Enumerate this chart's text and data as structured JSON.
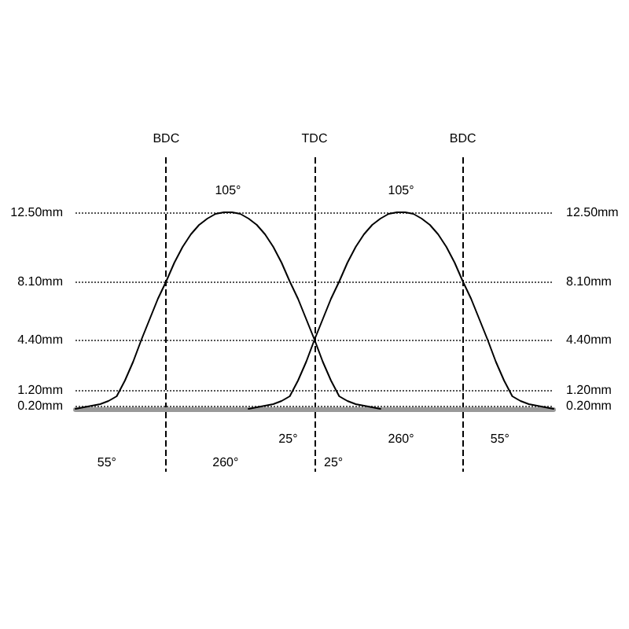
{
  "chart_data": {
    "type": "line",
    "categories": [
      null,
      null,
      null,
      null,
      null,
      null,
      null,
      null,
      null,
      null,
      null,
      "BDC",
      null,
      null,
      null,
      null,
      null,
      null,
      null,
      null,
      null,
      null,
      null,
      null,
      null,
      null,
      null,
      null,
      null,
      "TDC",
      null,
      null,
      null,
      null,
      null,
      null,
      null,
      null,
      null,
      null,
      null,
      null,
      null,
      null,
      null,
      null,
      null,
      "BDC",
      null,
      null,
      null,
      null,
      null,
      null,
      null,
      null,
      null,
      null,
      null
    ],
    "ylim": [
      -4,
      16
    ],
    "yticks": [
      {
        "value": 0.2,
        "label": "0.20mm"
      },
      {
        "value": 1.2,
        "label": "1.20mm"
      },
      {
        "value": 4.4,
        "label": "4.40mm"
      },
      {
        "value": 8.1,
        "label": "8.10mm"
      },
      {
        "value": 12.5,
        "label": "12.50mm"
      }
    ],
    "y2lim": [
      -4,
      16
    ],
    "y2ticks": [
      {
        "value": 0.2,
        "label": "0.20mm"
      },
      {
        "value": 1.2,
        "label": "1.20mm"
      },
      {
        "value": 4.4,
        "label": "4.40mm"
      },
      {
        "value": 8.1,
        "label": "8.10mm"
      },
      {
        "value": 12.5,
        "label": "12.50mm"
      }
    ],
    "grid": true,
    "marker": "none",
    "line_style": "solid",
    "series": [
      {
        "color": "#000000",
        "values": [
          0,
          0.1,
          0.2,
          0.3,
          0.5,
          0.8,
          1.8,
          3.0,
          4.4,
          5.7,
          7.0,
          8.1,
          9.3,
          10.3,
          11.1,
          11.7,
          12.1,
          12.4,
          12.5,
          12.5,
          12.4,
          12.1,
          11.7,
          11.1,
          10.3,
          9.3,
          8.1,
          7.0,
          5.7,
          4.4,
          3.0,
          1.8,
          0.8,
          0.5,
          0.3,
          0.2,
          0.1,
          0,
          null,
          null,
          null,
          null,
          null,
          null,
          null,
          null,
          null,
          null,
          null,
          null,
          null,
          null,
          null,
          null,
          null,
          null,
          null,
          null,
          null
        ]
      },
      {
        "color": "#000000",
        "values": [
          null,
          null,
          null,
          null,
          null,
          null,
          null,
          null,
          null,
          null,
          null,
          null,
          null,
          null,
          null,
          null,
          null,
          null,
          null,
          null,
          null,
          0,
          0.1,
          0.2,
          0.3,
          0.5,
          0.8,
          1.8,
          3.0,
          4.4,
          5.7,
          7.0,
          8.1,
          9.3,
          10.3,
          11.1,
          11.7,
          12.1,
          12.4,
          12.5,
          12.5,
          12.4,
          12.1,
          11.7,
          11.1,
          10.3,
          9.3,
          8.1,
          7.0,
          5.7,
          4.4,
          3.0,
          1.8,
          0.8,
          0.5,
          0.3,
          0.2,
          0.1,
          0
        ]
      }
    ],
    "annotations": [
      "105°",
      "105°",
      "25°",
      "260°",
      "55°",
      "55°",
      "260°",
      "25°"
    ]
  }
}
